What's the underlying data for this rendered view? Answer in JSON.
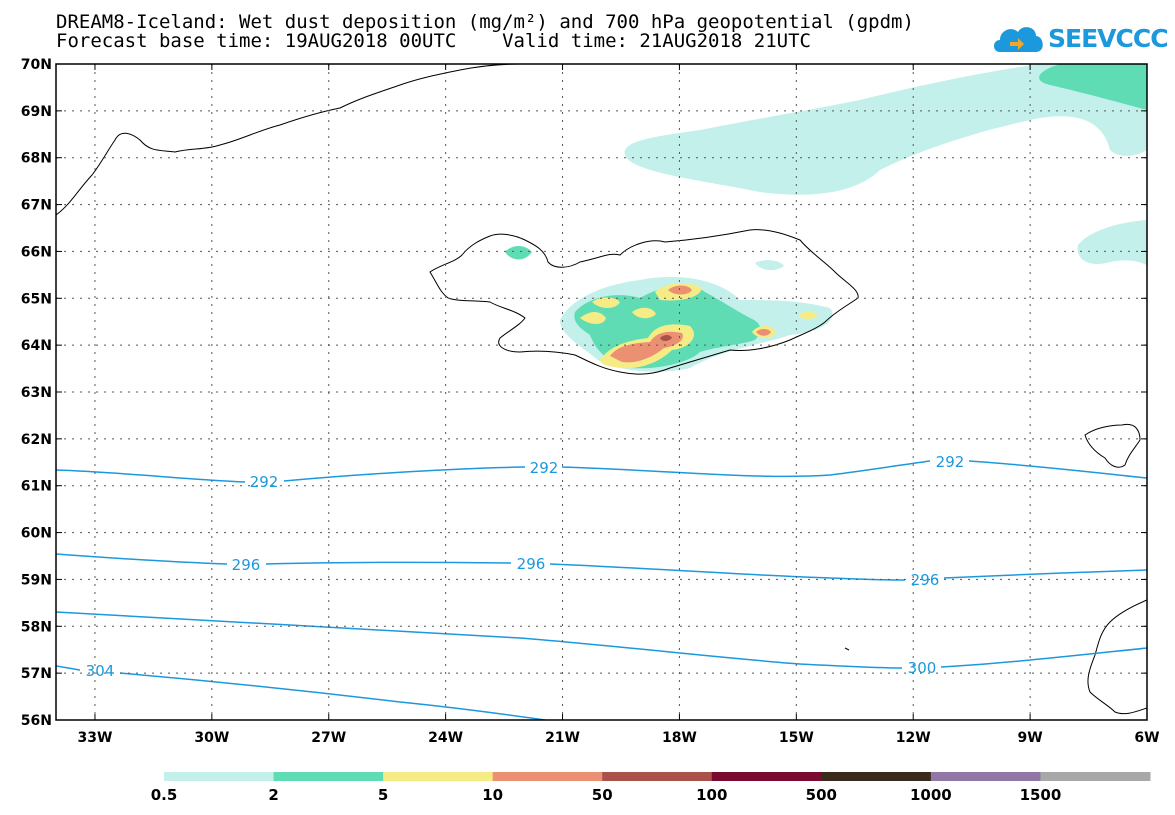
{
  "title_line1": "DREAM8-Iceland: Wet dust deposition (mg/m²) and 700 hPa geopotential (gpdm)",
  "title_line2": "Forecast base time: 19AUG2018 00UTC    Valid time: 21AUG2018 21UTC",
  "logo_text": "SEEVCCC",
  "map": {
    "lon_range": [
      -34,
      -6
    ],
    "lat_range": [
      56,
      70
    ],
    "lat_labels": [
      "70N",
      "69N",
      "68N",
      "67N",
      "66N",
      "65N",
      "64N",
      "63N",
      "62N",
      "61N",
      "60N",
      "59N",
      "58N",
      "57N",
      "56N"
    ],
    "lon_labels": [
      "33W",
      "30W",
      "27W",
      "24W",
      "21W",
      "18W",
      "15W",
      "12W",
      "9W",
      "6W"
    ],
    "contours": [
      {
        "value": 292,
        "labels": [
          "292",
          "292",
          "292"
        ],
        "color": "#1c98dd"
      },
      {
        "value": 296,
        "labels": [
          "296",
          "296",
          "296"
        ],
        "color": "#1c98dd"
      },
      {
        "value": 300,
        "labels": [
          "300"
        ],
        "color": "#1c98dd"
      },
      {
        "value": 304,
        "labels": [
          "304"
        ],
        "color": "#1c98dd"
      }
    ]
  },
  "legend": {
    "colors": [
      "#c3f0ea",
      "#5fdcb3",
      "#f5ec86",
      "#ec9074",
      "#a8524a",
      "#7a0b30",
      "#3a2a1c",
      "#9077a6",
      "#a8a8a8"
    ],
    "labels": [
      "0.5",
      "2",
      "5",
      "10",
      "50",
      "100",
      "500",
      "1000",
      "1500"
    ]
  }
}
